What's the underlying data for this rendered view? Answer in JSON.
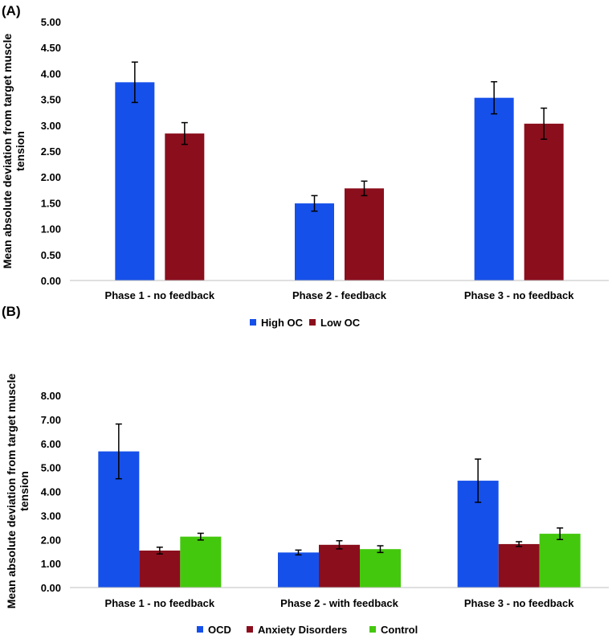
{
  "chart_data": [
    {
      "panel_label": "(A)",
      "type": "bar",
      "ylabel_lines": [
        "Mean absolute deviation from target muscle",
        "tension"
      ],
      "ylim": [
        0,
        5
      ],
      "ytick_step": 0.5,
      "grid": false,
      "categories": [
        "Phase 1 - no feedback",
        "Phase 2 - feedback",
        "Phase 3 - no feedback"
      ],
      "series": [
        {
          "name": "High OC",
          "color": "#1650EA",
          "values": [
            3.83,
            1.49,
            3.53
          ],
          "errors": [
            0.39,
            0.15,
            0.31
          ]
        },
        {
          "name": "Low OC",
          "color": "#8B0E1C",
          "values": [
            2.84,
            1.78,
            3.03
          ],
          "errors": [
            0.21,
            0.14,
            0.3
          ]
        }
      ],
      "legend_position": "bottom-center"
    },
    {
      "panel_label": "(B)",
      "type": "bar",
      "ylabel_lines": [
        "Mean absolute deviation from target muscle",
        "tension"
      ],
      "ylim": [
        0,
        8
      ],
      "ytick_step": 1,
      "grid": false,
      "categories": [
        "Phase 1 - no feedback",
        "Phase 2 - with feedback",
        "Phase 3 - no feedback"
      ],
      "series": [
        {
          "name": "OCD",
          "color": "#1650EA",
          "values": [
            5.67,
            1.46,
            4.45
          ],
          "errors": [
            1.14,
            0.1,
            0.9
          ]
        },
        {
          "name": "Anxiety Disorders",
          "color": "#8B0E1C",
          "values": [
            1.54,
            1.78,
            1.81
          ],
          "errors": [
            0.14,
            0.17,
            0.1
          ]
        },
        {
          "name": "Control",
          "color": "#44C80D",
          "values": [
            2.12,
            1.6,
            2.24
          ],
          "errors": [
            0.14,
            0.14,
            0.24
          ]
        }
      ],
      "legend_position": "bottom-center"
    }
  ]
}
